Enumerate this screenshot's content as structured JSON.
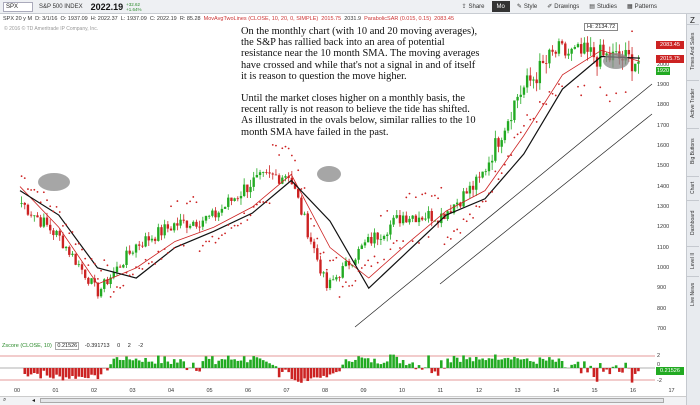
{
  "toolbar": {
    "symbol": "SPX",
    "name": "S&P 500 INDEX",
    "price": "2022.19",
    "change_up": "+32.62",
    "change_pct": "+1.64%",
    "buttons": {
      "share": "Share",
      "mode": "Mo",
      "style": "Style",
      "drawings": "Drawings",
      "studies": "Studies",
      "patterns": "Patterns"
    }
  },
  "infobar": {
    "period": "SPX 20 y M",
    "date": "D: 3/1/16",
    "open": "O: 1937.09",
    "high": "H: 2022.37",
    "low": "L: 1937.09",
    "close": "C: 2022.19",
    "range": "R: 85.28",
    "ma_label": "MovAvgTwoLines (CLOSE, 10, 20, 0, SIMPLE)",
    "ma1": "2015.75",
    "ma2": "2031.9",
    "sar_label": "ParabolicSAR (0.015, 0.15)",
    "sar": "2083.45"
  },
  "watermark": "© 2016 © TD Ameritrade IP Company, Inc.",
  "note": {
    "para1": "On the monthly chart (with 10 and 20 moving averages), the S&P has rallied back into an area of potential resistance near the 10 month SMA. The moving averages have crossed and while that's not a signal in and of itself it is reason to question the move higher.",
    "para2": "Until the market closes higher on a monthly basis, the recent rally is not reason to believe the tide has shifted.  As illustrated in the ovals below, similar rallies to the 10 month SMA have failed in the past."
  },
  "hi_label": "Hi: 2134.72",
  "price_tags": [
    {
      "value": "2083.45",
      "color": "#cc2222"
    },
    {
      "value": "2015.75",
      "color": "#cc2222"
    },
    {
      "value": "1920",
      "color": "#22aa22"
    }
  ],
  "y_axis": [
    "2100",
    "2000",
    "1900",
    "1800",
    "1700",
    "1600",
    "1500",
    "1400",
    "1300",
    "1200",
    "1100",
    "1000",
    "900",
    "800",
    "700"
  ],
  "oscillator": {
    "title": "Zscore (CLOSE, 10)",
    "value": "0.21526",
    "field1": "-0.391713",
    "field2": "0",
    "field3": "2",
    "field4": "-2",
    "axis": [
      "2",
      "0",
      "-2"
    ],
    "current": "0.21526"
  },
  "x_axis": [
    "00",
    "01",
    "02",
    "03",
    "04",
    "05",
    "06",
    "07",
    "08",
    "09",
    "10",
    "11",
    "12",
    "13",
    "14",
    "15",
    "16",
    "17"
  ],
  "sidebar_tabs": [
    "Times And Sales",
    "Active Trader",
    "Big Buttons",
    "Chart",
    "Dashboard",
    "Level II",
    "Live News"
  ],
  "colors": {
    "up": "#22aa22",
    "down": "#cc2222",
    "ma10": "#cc2222",
    "ma20": "#111111",
    "sar": "#cc2222",
    "oval": "#888888"
  },
  "chart_data": {
    "type": "candlestick",
    "title": "",
    "ylim": [
      650,
      2200
    ],
    "x": [
      "2000",
      "2001",
      "2002",
      "2003",
      "2004",
      "2005",
      "2006",
      "2007",
      "2008",
      "2009",
      "2010",
      "2011",
      "2012",
      "2013",
      "2014",
      "2015",
      "2016"
    ],
    "close": [
      1320,
      1148,
      880,
      1112,
      1212,
      1248,
      1418,
      1468,
      903,
      1115,
      1258,
      1258,
      1426,
      1848,
      2059,
      2044,
      2022
    ],
    "series": [
      {
        "name": "MovAvgTwoLines 10",
        "values": [
          1400,
          1200,
          920,
          1000,
          1130,
          1200,
          1300,
          1460,
          1100,
          950,
          1120,
          1280,
          1380,
          1650,
          1950,
          2070,
          2016
        ]
      },
      {
        "name": "MovAvgTwoLines 20",
        "values": [
          1380,
          1260,
          1000,
          950,
          1100,
          1180,
          1270,
          1430,
          1230,
          900,
          1080,
          1260,
          1340,
          1560,
          1880,
          2040,
          2032
        ]
      }
    ],
    "oscillator_ylim": [
      -3,
      3
    ]
  }
}
